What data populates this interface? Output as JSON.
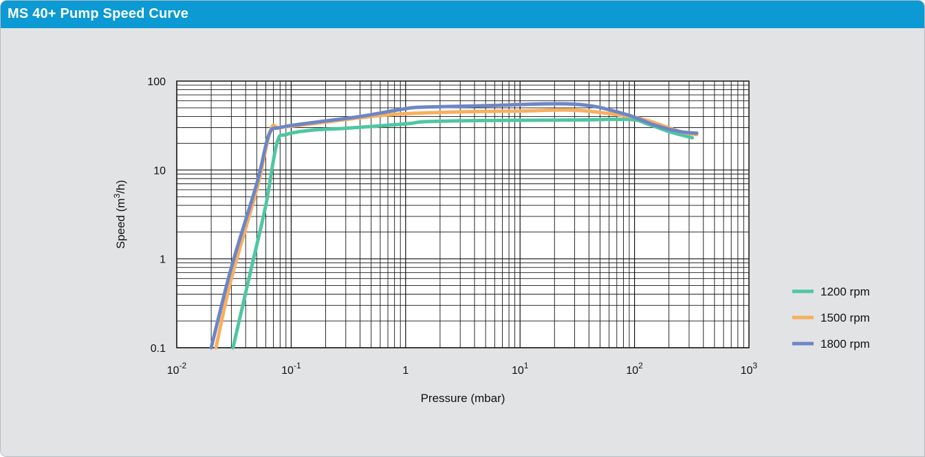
{
  "panel": {
    "title": "MS 40+ Pump Speed Curve"
  },
  "colors": {
    "header": "#0b9ad3",
    "background": "#e2e3e5",
    "plot_area": "#ffffff"
  },
  "chart_data": {
    "type": "line",
    "xlabel": "Pressure (mbar)",
    "ylabel": "Speed (m3/h)",
    "x_scale": "log",
    "y_scale": "log",
    "xlim": [
      0.01,
      1000
    ],
    "ylim": [
      0.1,
      100
    ],
    "x_tick_labels": [
      {
        "base": "10",
        "exp": "-2"
      },
      {
        "base": "10",
        "exp": "-1"
      },
      {
        "base": "1",
        "exp": ""
      },
      {
        "base": "10",
        "exp": "1"
      },
      {
        "base": "10",
        "exp": "2"
      },
      {
        "base": "10",
        "exp": "3"
      }
    ],
    "y_tick_labels": [
      "0.1",
      "1",
      "10",
      "100"
    ],
    "grid": true,
    "legend_position": "right",
    "series": [
      {
        "name": "1200 rpm",
        "color": "#4fc6a2",
        "points": [
          [
            0.031,
            0.1
          ],
          [
            0.045,
            0.8
          ],
          [
            0.06,
            4
          ],
          [
            0.075,
            20
          ],
          [
            0.09,
            25
          ],
          [
            0.15,
            28
          ],
          [
            0.3,
            29.5
          ],
          [
            1,
            33
          ],
          [
            1.5,
            35
          ],
          [
            5,
            36
          ],
          [
            30,
            36.5
          ],
          [
            90,
            37
          ],
          [
            130,
            33
          ],
          [
            200,
            27
          ],
          [
            320,
            23
          ]
        ]
      },
      {
        "name": "1500 rpm",
        "color": "#f8af5f",
        "points": [
          [
            0.022,
            0.1
          ],
          [
            0.03,
            0.6
          ],
          [
            0.05,
            6
          ],
          [
            0.066,
            28
          ],
          [
            0.08,
            30
          ],
          [
            0.15,
            33
          ],
          [
            0.5,
            40
          ],
          [
            1,
            43
          ],
          [
            3,
            45
          ],
          [
            10,
            46
          ],
          [
            30,
            47
          ],
          [
            80,
            41
          ],
          [
            130,
            36
          ],
          [
            250,
            27
          ],
          [
            350,
            25
          ]
        ]
      },
      {
        "name": "1800 rpm",
        "color": "#6d86c6",
        "points": [
          [
            0.02,
            0.1
          ],
          [
            0.03,
            0.8
          ],
          [
            0.05,
            7
          ],
          [
            0.064,
            25
          ],
          [
            0.08,
            30
          ],
          [
            0.15,
            34
          ],
          [
            0.4,
            40
          ],
          [
            1,
            49
          ],
          [
            1.5,
            51
          ],
          [
            5,
            53
          ],
          [
            30,
            55
          ],
          [
            80,
            43
          ],
          [
            150,
            32
          ],
          [
            250,
            27
          ],
          [
            350,
            26
          ]
        ]
      }
    ]
  }
}
